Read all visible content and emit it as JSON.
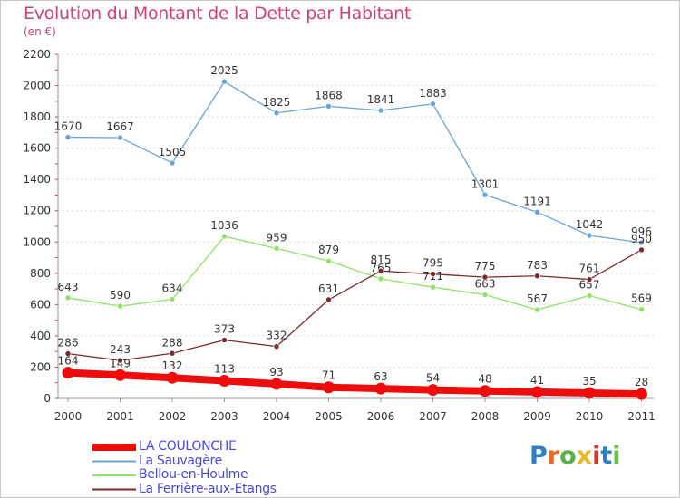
{
  "header": {
    "title": "Evolution du Montant de la Dette par Habitant",
    "unit": "(en €)"
  },
  "logo": {
    "text": "Proxiti",
    "colors": [
      "#2f7dc4",
      "#e86a2a",
      "#5bb04b",
      "#e8b82a",
      "#d6342c",
      "#2f7dc4",
      "#6cbf3c"
    ]
  },
  "chart_data": {
    "type": "line",
    "title": "Evolution du Montant de la Dette par Habitant",
    "subtitle": "(en €)",
    "xlabel": "",
    "ylabel": "",
    "x": [
      "2000",
      "2001",
      "2002",
      "2003",
      "2004",
      "2005",
      "2006",
      "2007",
      "2008",
      "2009",
      "2010",
      "2011"
    ],
    "ylim": [
      0,
      2200
    ],
    "yticks": [
      0,
      200,
      400,
      600,
      800,
      1000,
      1200,
      1400,
      1600,
      1800,
      2000,
      2200
    ],
    "grid": "horizontal",
    "legend_position": "bottom-left",
    "series": [
      {
        "name": "LA COULONCHE",
        "color": "#ee0d0d",
        "values": [
          164,
          149,
          132,
          113,
          93,
          71,
          63,
          54,
          48,
          41,
          35,
          28
        ],
        "labels": [
          "164",
          "149",
          "132",
          "113",
          "93",
          "71",
          "63",
          "54",
          "48",
          "41",
          "35",
          "28"
        ],
        "emphasis": true
      },
      {
        "name": "La Sauvagère",
        "color": "#6aa3d6",
        "values": [
          1670,
          1667,
          1505,
          2025,
          1825,
          1868,
          1841,
          1883,
          1301,
          1191,
          1042,
          996
        ],
        "labels": [
          "1670",
          "1667",
          "1505",
          "2025",
          "1825",
          "1868",
          "1841",
          "1883",
          "1301",
          "1191",
          "1042",
          "996"
        ]
      },
      {
        "name": "Bellou-en-Houlme",
        "color": "#90e06a",
        "values": [
          643,
          590,
          634,
          1036,
          959,
          879,
          765,
          711,
          663,
          567,
          657,
          569
        ],
        "labels": [
          "643",
          "590",
          "634",
          "1036",
          "959",
          "879",
          "765",
          "711",
          "663",
          "567",
          "657",
          "569"
        ]
      },
      {
        "name": "La Ferrière-aux-Etangs",
        "color": "#7a2a2a",
        "values": [
          286,
          243,
          288,
          373,
          332,
          631,
          815,
          795,
          775,
          783,
          761,
          950
        ],
        "labels": [
          "286",
          "243",
          "288",
          "373",
          "332",
          "631",
          "815",
          "795",
          "775",
          "783",
          "761",
          "950"
        ]
      }
    ]
  }
}
